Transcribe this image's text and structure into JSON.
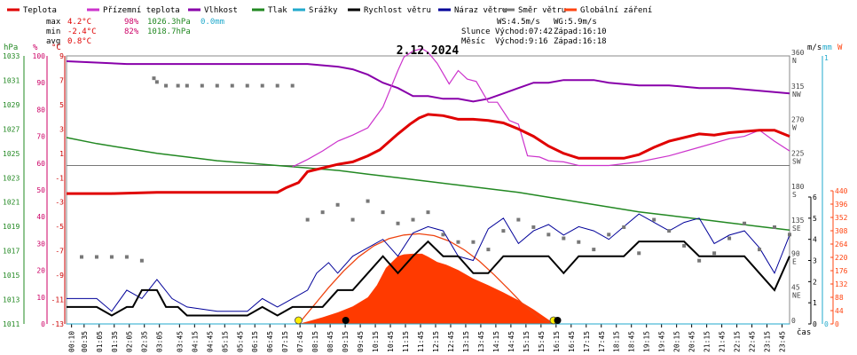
{
  "legend": [
    {
      "name": "Teplota",
      "color": "#e00000"
    },
    {
      "name": "Přízemní teplota",
      "color": "#cc33cc"
    },
    {
      "name": "Vlhkost",
      "color": "#8800aa"
    },
    {
      "name": "Tlak",
      "color": "#228822"
    },
    {
      "name": "Srážky",
      "color": "#22aacc"
    },
    {
      "name": "Rychlost větru",
      "color": "#000000"
    },
    {
      "name": "Náraz větru",
      "color": "#000099"
    },
    {
      "name": "Směr větru",
      "color": "#777777"
    },
    {
      "name": "Globální záření",
      "color": "#ff4411"
    }
  ],
  "stats": {
    "max_label": "max",
    "max_temp": "4.2°C",
    "max_hum": "98%",
    "max_press": "1026.3hPa",
    "max_rain": "0.0mm",
    "min_label": "min",
    "min_temp": "-2.4°C",
    "min_hum": "82%",
    "min_press": "1018.7hPa",
    "avg_label": "avg",
    "avg_temp": "0.8°C"
  },
  "info": {
    "ws": "WS:4.5m/s",
    "wg": "WG:5.9m/s",
    "sun_label": "Slunce",
    "sun_rise": "Východ:07:42",
    "sun_set": "Západ:16:10",
    "moon_label": "Měsíc",
    "moon_rise": "Východ:9:16",
    "moon_set": "Západ:16:18"
  },
  "chart_data": {
    "type": "line",
    "title": "2.12.2024",
    "xlabel": "čas",
    "x_ticks": [
      "00:10",
      "00:35",
      "01:05",
      "01:35",
      "02:05",
      "02:35",
      "03:05",
      "03:45",
      "04:15",
      "04:45",
      "05:15",
      "05:45",
      "06:15",
      "06:45",
      "07:15",
      "07:45",
      "08:15",
      "08:45",
      "09:15",
      "09:45",
      "10:15",
      "10:45",
      "11:15",
      "11:45",
      "12:15",
      "12:45",
      "13:15",
      "13:45",
      "14:15",
      "14:45",
      "15:15",
      "15:45",
      "16:15",
      "16:45",
      "17:15",
      "17:45",
      "18:15",
      "18:45",
      "19:15",
      "19:45",
      "20:15",
      "20:45",
      "21:15",
      "21:45",
      "22:15",
      "22:45",
      "23:15",
      "23:45"
    ],
    "axes": {
      "pressure": {
        "unit": "hPa",
        "ticks": [
          "1033",
          "1031",
          "1029",
          "1027",
          "1025",
          "1023",
          "1021",
          "1019",
          "1017",
          "1015",
          "1013",
          "1011"
        ],
        "color": "#228822"
      },
      "humidity": {
        "unit": "%",
        "ticks": [
          "100",
          "90",
          "80",
          "70",
          "60",
          "50",
          "40",
          "30",
          "20",
          "10",
          "0"
        ],
        "color": "#cc0066"
      },
      "temperature": {
        "unit": "°C",
        "ticks": [
          "9",
          "7",
          "5",
          "3",
          "1",
          "-1",
          "-3",
          "-5",
          "-7",
          "-9",
          "-11",
          "-13"
        ],
        "color": "#cc0000"
      },
      "wind_dir": {
        "ticks": [
          {
            "v": "360",
            "d": "N"
          },
          {
            "v": "315",
            "d": "NW"
          },
          {
            "v": "270",
            "d": "W"
          },
          {
            "v": "225",
            "d": "SW"
          },
          {
            "v": "180",
            "d": "S"
          },
          {
            "v": "135",
            "d": "SE"
          },
          {
            "v": "90",
            "d": "E"
          },
          {
            "v": "45",
            "d": "NE"
          },
          {
            "v": "0",
            "d": ""
          }
        ]
      },
      "wind_speed": {
        "unit": "m/s",
        "ticks": [
          "6",
          "5",
          "4",
          "3",
          "2",
          "1",
          "0"
        ]
      },
      "rain": {
        "unit": "mm",
        "ticks": [
          "1",
          "0"
        ],
        "color": "#22aacc"
      },
      "radiation": {
        "unit": "W",
        "ticks": [
          "440",
          "396",
          "352",
          "308",
          "264",
          "220",
          "176",
          "132",
          "88",
          "44",
          "0"
        ],
        "color": "#ff4411"
      }
    },
    "series": {
      "temperature": {
        "name": "Teplota",
        "x": [
          0,
          1.5,
          3,
          5,
          7,
          7.3,
          7.7,
          8,
          9,
          9.5,
          10,
          10.4,
          11,
          11.4,
          11.7,
          12,
          12.5,
          13,
          13.5,
          14,
          14.5,
          15,
          15.5,
          16,
          16.5,
          17,
          17.5,
          18,
          18.5,
          19,
          19.5,
          20,
          21,
          21.5,
          22,
          22.5,
          23,
          23.5,
          24
        ],
        "y": [
          -2.3,
          -2.3,
          -2.2,
          -2.2,
          -2.2,
          -1.8,
          -1.4,
          -0.5,
          0.1,
          0.3,
          0.8,
          1.3,
          2.6,
          3.4,
          3.9,
          4.2,
          4.1,
          3.8,
          3.8,
          3.7,
          3.5,
          3.0,
          2.4,
          1.6,
          1.0,
          0.6,
          0.6,
          0.6,
          0.6,
          0.9,
          1.5,
          2.0,
          2.6,
          2.5,
          2.7,
          2.8,
          2.9,
          2.9,
          2.4
        ]
      },
      "ground_temperature": {
        "name": "Přízemní teplota",
        "x": [
          0,
          1,
          2,
          3,
          4,
          5,
          6,
          7,
          7.5,
          8,
          8.5,
          9,
          9.5,
          10,
          10.5,
          11,
          11.2,
          11.5,
          11.8,
          12,
          12.3,
          12.7,
          13,
          13.3,
          13.6,
          14,
          14.3,
          14.7,
          15,
          15.3,
          15.7,
          16,
          16.5,
          17,
          18,
          19,
          20,
          21,
          22,
          22.5,
          23,
          23.5,
          24
        ],
        "y": [
          null,
          null,
          null,
          null,
          null,
          null,
          null,
          null,
          -0.1,
          0.5,
          1.2,
          2.0,
          2.5,
          3.1,
          4.8,
          7.8,
          8.9,
          9.4,
          9.6,
          9.3,
          8.4,
          6.7,
          7.8,
          7.1,
          6.9,
          5.2,
          5.2,
          3.7,
          3.4,
          0.8,
          0.7,
          0.4,
          0.3,
          0.0,
          0.0,
          0.3,
          0.8,
          1.5,
          2.2,
          2.4,
          2.9,
          2.0,
          1.2
        ]
      },
      "humidity": {
        "name": "Vlhkost",
        "x": [
          0,
          2,
          4,
          6,
          8,
          9,
          9.5,
          10,
          10.5,
          11,
          11.5,
          12,
          12.5,
          13,
          13.5,
          14,
          14.5,
          15,
          15.5,
          16,
          16.5,
          17,
          17.5,
          18,
          19,
          20,
          21,
          22,
          23,
          24
        ],
        "y": [
          98,
          97,
          97,
          97,
          97,
          96,
          95,
          93,
          90,
          88,
          85,
          85,
          84,
          84,
          83,
          84,
          86,
          88,
          90,
          90,
          91,
          91,
          91,
          90,
          89,
          89,
          88,
          88,
          87,
          86
        ]
      },
      "pressure": {
        "name": "Tlak",
        "x": [
          0,
          1,
          2,
          3,
          4,
          5,
          6,
          7,
          8,
          9,
          10,
          11,
          12,
          13,
          14,
          15,
          16,
          17,
          18,
          19,
          20,
          21,
          22,
          23,
          24
        ],
        "y": [
          1026.3,
          1025.8,
          1025.4,
          1025.0,
          1024.7,
          1024.4,
          1024.2,
          1024.0,
          1023.8,
          1023.6,
          1023.3,
          1023.0,
          1022.7,
          1022.4,
          1022.1,
          1021.8,
          1021.4,
          1021.0,
          1020.6,
          1020.2,
          1019.9,
          1019.6,
          1019.3,
          1019.0,
          1018.7
        ]
      },
      "rain": {
        "name": "Srážky",
        "x": [
          0,
          24
        ],
        "y": [
          0.0,
          0.0
        ]
      },
      "wind_speed": {
        "name": "Rychlost větru",
        "x": [
          0,
          1,
          1.5,
          2,
          2.2,
          2.5,
          3,
          3.3,
          3.7,
          4,
          5,
          6,
          6.5,
          7,
          7.5,
          8,
          8.5,
          9,
          9.5,
          10,
          10.5,
          11,
          11.5,
          12,
          12.5,
          13,
          13.5,
          14,
          14.5,
          15,
          15.5,
          16,
          16.5,
          17,
          17.5,
          18,
          18.5,
          19,
          19.5,
          20,
          20.5,
          21,
          21.5,
          22,
          22.5,
          23,
          23.5,
          24
        ],
        "y": [
          0.8,
          0.8,
          0.4,
          0.8,
          0.8,
          1.6,
          1.6,
          0.8,
          0.8,
          0.4,
          0.4,
          0.4,
          0.8,
          0.4,
          0.8,
          0.8,
          0.8,
          1.6,
          1.6,
          2.4,
          3.2,
          2.4,
          3.2,
          3.9,
          3.2,
          3.2,
          2.4,
          2.4,
          3.2,
          3.2,
          3.2,
          3.2,
          2.4,
          3.2,
          3.2,
          3.2,
          3.2,
          3.9,
          3.9,
          3.9,
          3.9,
          3.2,
          3.2,
          3.2,
          3.2,
          2.4,
          1.6,
          3.2
        ]
      },
      "wind_gust": {
        "name": "Náraz větru",
        "x": [
          0,
          1,
          1.5,
          2,
          2.5,
          3,
          3.5,
          4,
          5,
          6,
          6.5,
          7,
          7.5,
          8,
          8.3,
          8.7,
          9,
          9.5,
          10,
          10.5,
          11,
          11.5,
          12,
          12.5,
          13,
          13.5,
          14,
          14.5,
          15,
          15.5,
          16,
          16.5,
          17,
          17.5,
          18,
          18.5,
          19,
          19.5,
          20,
          20.5,
          21,
          21.5,
          22,
          22.5,
          23,
          23.5,
          24
        ],
        "y": [
          1.2,
          1.2,
          0.6,
          1.6,
          1.2,
          2.1,
          1.2,
          0.8,
          0.6,
          0.6,
          1.2,
          0.8,
          1.2,
          1.6,
          2.4,
          2.9,
          2.4,
          3.2,
          3.6,
          4.0,
          3.2,
          4.3,
          4.6,
          4.4,
          3.2,
          3.0,
          4.5,
          5.0,
          3.8,
          4.4,
          4.7,
          4.2,
          4.6,
          4.4,
          4.0,
          4.6,
          5.2,
          4.8,
          4.4,
          4.8,
          5.0,
          3.8,
          4.2,
          4.4,
          3.6,
          2.4,
          4.2
        ]
      },
      "wind_direction": {
        "name": "Směr větru",
        "x": [
          0.5,
          1,
          1.5,
          2,
          2.5,
          2.9,
          3,
          3.3,
          3.7,
          4,
          4.5,
          5,
          5.5,
          6,
          6.5,
          7,
          7.5,
          8,
          8.5,
          9,
          9.5,
          10,
          10.5,
          11,
          11.5,
          12,
          12.5,
          13,
          13.5,
          14,
          14.5,
          15,
          15.5,
          16,
          16.5,
          17,
          17.5,
          18,
          18.5,
          19,
          19.5,
          20,
          20.5,
          21,
          21.5,
          22,
          22.5,
          23,
          23.5,
          24
        ],
        "y": [
          90,
          90,
          90,
          90,
          85,
          330,
          325,
          320,
          320,
          320,
          320,
          320,
          320,
          320,
          320,
          320,
          320,
          140,
          150,
          160,
          140,
          165,
          150,
          135,
          140,
          150,
          120,
          110,
          110,
          100,
          125,
          140,
          130,
          120,
          115,
          110,
          100,
          120,
          130,
          95,
          140,
          125,
          105,
          85,
          95,
          115,
          135,
          100,
          130,
          120
        ]
      },
      "radiation": {
        "name": "Globální záření",
        "x": [
          7.7,
          8,
          8.5,
          9,
          9.5,
          10,
          10.3,
          10.6,
          11,
          11.2,
          11.5,
          11.8,
          12,
          12.3,
          12.6,
          13,
          13.5,
          14,
          14.5,
          15,
          15.5,
          16,
          16.2
        ],
        "y": [
          0,
          8,
          22,
          38,
          58,
          88,
          128,
          185,
          224,
          230,
          232,
          232,
          222,
          205,
          196,
          178,
          150,
          128,
          104,
          78,
          48,
          14,
          0
        ]
      },
      "radiation_clear_sky": {
        "name": "Globální záření (jasná obloha)",
        "x": [
          7.7,
          8.2,
          8.7,
          9.2,
          9.7,
          10.2,
          10.7,
          11.2,
          11.7,
          12.2,
          12.7,
          13.2,
          13.7,
          14.2,
          14.7,
          15.2,
          15.7,
          16.2
        ],
        "y": [
          0,
          60,
          120,
          175,
          222,
          258,
          282,
          294,
          298,
          292,
          274,
          245,
          208,
          162,
          112,
          60,
          18,
          0
        ]
      }
    }
  }
}
